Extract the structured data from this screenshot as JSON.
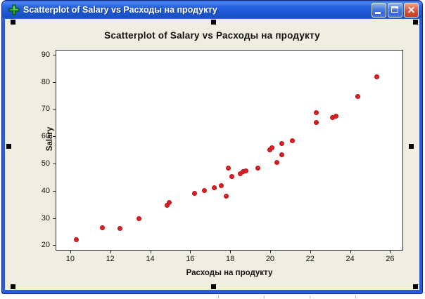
{
  "window": {
    "title": "Scatterplot of Salary vs Расходы на продукту",
    "icon": "minitab-graph-icon",
    "controls": [
      {
        "name": "minimize-button"
      },
      {
        "name": "maximize-button"
      },
      {
        "name": "close-button"
      }
    ],
    "titlebar_color": "#2258d6",
    "border_color": "#2a5cd8"
  },
  "chart_data": {
    "type": "scatter",
    "title": "Scatterplot of Salary vs Расходы на продукту",
    "xlabel": "Расходы на продукту",
    "ylabel": "Salary",
    "x_ticks": [
      10,
      12,
      14,
      16,
      18,
      20,
      22,
      24,
      26
    ],
    "y_ticks": [
      20,
      30,
      40,
      50,
      60,
      70,
      80,
      90
    ],
    "xlim": [
      9.3,
      26.62
    ],
    "ylim": [
      18.3,
      91.5
    ],
    "grid": false,
    "legend": "none",
    "point_color": "#de1f26",
    "background_color": "#f1eee1",
    "plot_background": "#ffffff",
    "points": [
      [
        10.3,
        22.0
      ],
      [
        11.6,
        26.5
      ],
      [
        12.5,
        26.2
      ],
      [
        13.45,
        29.8
      ],
      [
        14.85,
        34.7
      ],
      [
        14.95,
        35.7
      ],
      [
        16.2,
        39.0
      ],
      [
        16.7,
        40.2
      ],
      [
        17.2,
        41.2
      ],
      [
        17.55,
        42.0
      ],
      [
        17.8,
        37.9
      ],
      [
        17.9,
        48.2
      ],
      [
        18.1,
        45.2
      ],
      [
        18.5,
        46.2
      ],
      [
        18.65,
        47.0
      ],
      [
        18.8,
        47.4
      ],
      [
        19.4,
        48.3
      ],
      [
        20.0,
        55.0
      ],
      [
        20.1,
        55.7
      ],
      [
        20.35,
        50.4
      ],
      [
        20.6,
        53.3
      ],
      [
        20.6,
        57.3
      ],
      [
        21.1,
        58.4
      ],
      [
        22.3,
        65.0
      ],
      [
        22.3,
        68.6
      ],
      [
        23.1,
        67.0
      ],
      [
        23.3,
        67.5
      ],
      [
        24.4,
        74.6
      ],
      [
        25.35,
        81.9
      ]
    ]
  }
}
